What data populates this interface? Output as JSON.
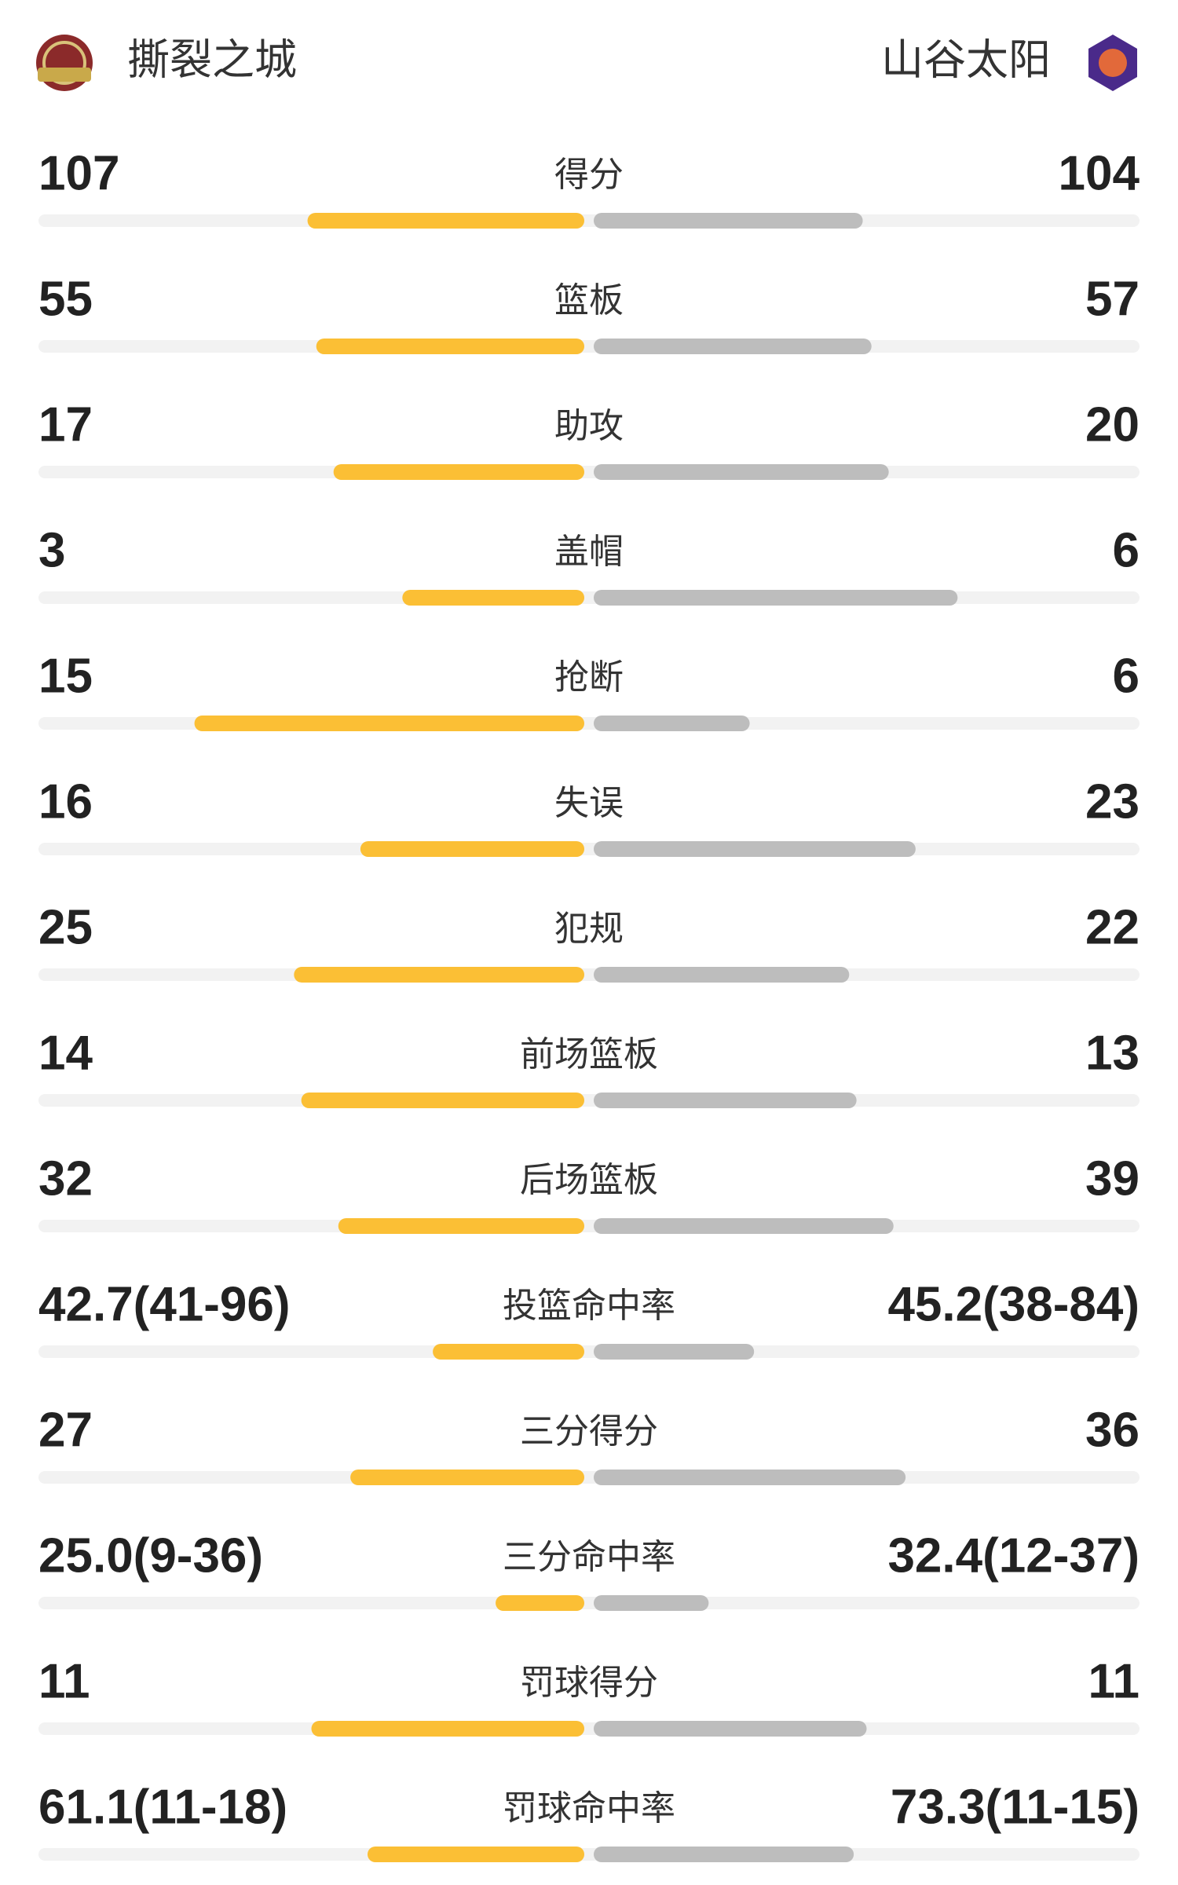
{
  "header": {
    "home": "撕裂之城",
    "away": "山谷太阳"
  },
  "rows": [
    {
      "label": "得分",
      "left": 107,
      "right": 104
    },
    {
      "label": "篮板",
      "left": 55,
      "right": 57
    },
    {
      "label": "助攻",
      "left": 17,
      "right": 20
    },
    {
      "label": "盖帽",
      "left": 3,
      "right": 6
    },
    {
      "label": "抢断",
      "left": 15,
      "right": 6
    },
    {
      "label": "失误",
      "left": 16,
      "right": 23
    },
    {
      "label": "犯规",
      "left": 25,
      "right": 22
    },
    {
      "label": "前场篮板",
      "left": 14,
      "right": 13
    },
    {
      "label": "后场篮板",
      "left": 32,
      "right": 39
    },
    {
      "label": "投篮命中率",
      "left": {
        "value": 42.7,
        "label": "42.7(41-96)"
      },
      "right": {
        "value": 45.2,
        "label": "45.2(38-84)"
      }
    },
    {
      "label": "三分得分",
      "left": 27,
      "right": 36
    },
    {
      "label": "三分命中率",
      "left": {
        "value": 25.0,
        "label": "25.0(9-36)"
      },
      "right": {
        "value": 32.4,
        "label": "32.4(12-37)"
      }
    },
    {
      "label": "罚球得分",
      "left": 11,
      "right": 11
    },
    {
      "label": "罚球命中率",
      "left": {
        "value": 61.1,
        "label": "61.1(11-18)"
      },
      "right": {
        "value": 73.3,
        "label": "73.3(11-15)"
      }
    }
  ]
}
